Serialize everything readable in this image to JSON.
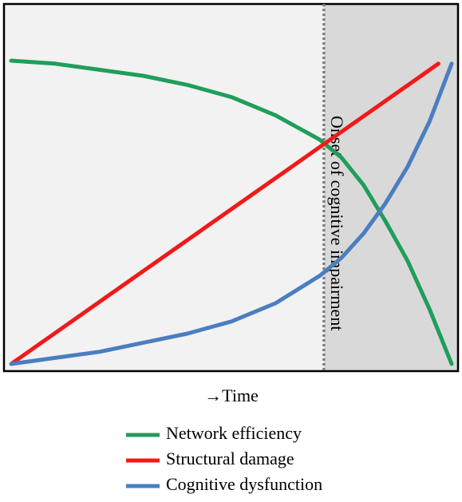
{
  "chart_data": {
    "type": "line",
    "xlabel": "→Time",
    "annotation": "Onset of cognitive impairment",
    "onset_x": 71,
    "xlim": [
      0,
      100
    ],
    "ylim": [
      0,
      100
    ],
    "series": [
      {
        "name": "Network efficiency",
        "color": "#1f9e5a",
        "x": [
          0,
          10,
          20,
          30,
          40,
          50,
          60,
          70,
          75,
          80,
          85,
          90,
          95,
          100
        ],
        "values": [
          100,
          99,
          97,
          95,
          92,
          88,
          82,
          74,
          68,
          59,
          47,
          34,
          18,
          0
        ]
      },
      {
        "name": "Structural damage",
        "color": "#f01a1a",
        "x": [
          0,
          97
        ],
        "values": [
          0,
          99
        ]
      },
      {
        "name": "Cognitive dysfunction",
        "color": "#4a7ec0",
        "x": [
          0,
          10,
          20,
          30,
          40,
          50,
          60,
          70,
          75,
          80,
          85,
          90,
          95,
          100
        ],
        "values": [
          0,
          2,
          4,
          7,
          10,
          14,
          20,
          29,
          35,
          43,
          53,
          65,
          80,
          99
        ]
      }
    ]
  }
}
